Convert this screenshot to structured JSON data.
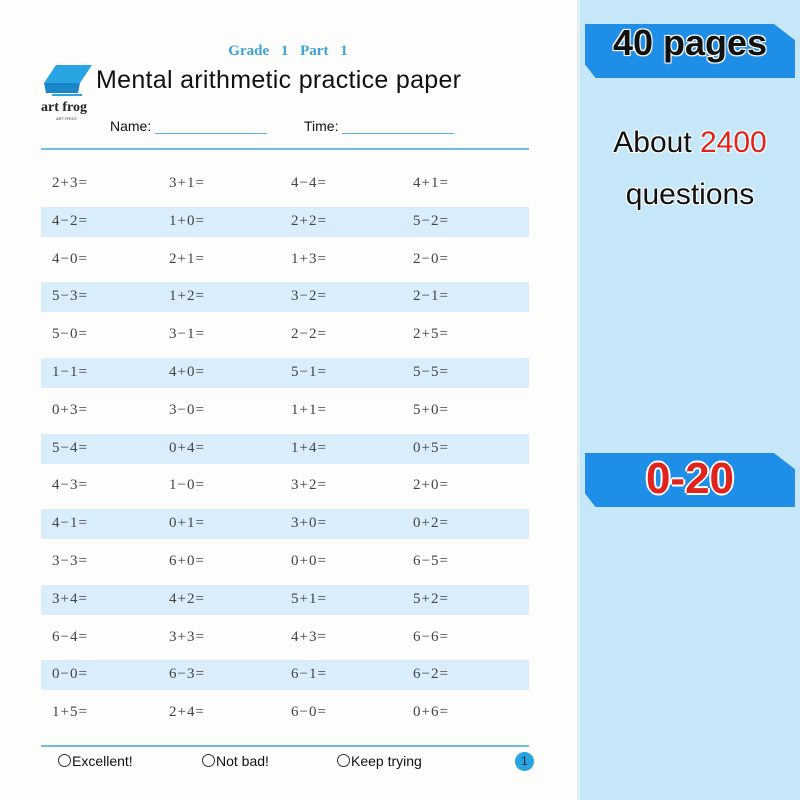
{
  "worksheet": {
    "grade_part": "Grade 1   Part 1",
    "title": "Mental arithmetic practice paper",
    "brand": "art frog",
    "brand_sub": "ART FROG",
    "name_label": "Name:",
    "time_label": "Time:",
    "questions": [
      [
        "2+3=",
        "3+1=",
        "4−4=",
        "4+1="
      ],
      [
        "4−2=",
        "1+0=",
        "2+2=",
        "5−2="
      ],
      [
        "4−0=",
        "2+1=",
        "1+3=",
        "2−0="
      ],
      [
        "5−3=",
        "1+2=",
        "3−2=",
        "2−1="
      ],
      [
        "5−0=",
        "3−1=",
        "2−2=",
        "2+5="
      ],
      [
        "1−1=",
        "4+0=",
        "5−1=",
        "5−5="
      ],
      [
        "0+3=",
        "3−0=",
        "1+1=",
        "5+0="
      ],
      [
        "5−4=",
        "0+4=",
        "1+4=",
        "0+5="
      ],
      [
        "4−3=",
        "1−0=",
        "3+2=",
        "2+0="
      ],
      [
        "4−1=",
        "0+1=",
        "3+0=",
        "0+2="
      ],
      [
        "3−3=",
        "6+0=",
        "0+0=",
        "6−5="
      ],
      [
        "3+4=",
        "4+2=",
        "5+1=",
        "5+2="
      ],
      [
        "6−4=",
        "3+3=",
        "4+3=",
        "6−6="
      ],
      [
        "0−0=",
        "6−3=",
        "6−1=",
        "6−2="
      ],
      [
        "1+5=",
        "2+4=",
        "6−0=",
        "0+6="
      ]
    ],
    "ratings": [
      "Excellent!",
      "Not bad!",
      "Keep trying"
    ],
    "page_number": "1"
  },
  "promo": {
    "pages": "40 pages",
    "about_prefix": "About",
    "about_count": "2400",
    "about_suffix": "questions",
    "range": "0-20"
  },
  "colors": {
    "accent_blue": "#1f8ee6",
    "stripe": "#d9edfa",
    "side_panel": "#c6e7f8",
    "highlight_red": "#e0231d"
  }
}
